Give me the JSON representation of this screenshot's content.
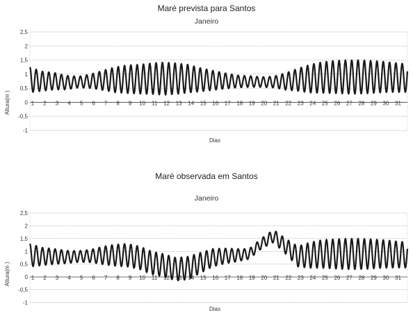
{
  "chart_data": [
    {
      "type": "line",
      "title": "Maré prevista para Santos",
      "subtitle": "Janeiro",
      "xlabel": "Dias",
      "ylabel": "Altura(m )",
      "ylim": [
        -1,
        2.5
      ],
      "yticks": [
        "2,5",
        "2",
        "1,5",
        "1",
        "0,5",
        "0",
        "-0,5",
        "-1"
      ],
      "ytick_values": [
        2.5,
        2,
        1.5,
        1,
        0.5,
        0,
        -0.5,
        -1
      ],
      "xticks": [
        "1",
        "2",
        "3",
        "4",
        "5",
        "6",
        "7",
        "8",
        "9",
        "10",
        "11",
        "12",
        "13",
        "14",
        "15",
        "16",
        "17",
        "18",
        "19",
        "20",
        "21",
        "22",
        "23",
        "24",
        "25",
        "26",
        "27",
        "28",
        "29",
        "30",
        "31"
      ],
      "xlim": [
        1,
        32
      ],
      "series": [
        {
          "mean": [
            0.8,
            0.75,
            0.75,
            0.7,
            0.72,
            0.75,
            0.78,
            0.8,
            0.82,
            0.82,
            0.84,
            0.84,
            0.84,
            0.84,
            0.8,
            0.78,
            0.76,
            0.74,
            0.74,
            0.72,
            0.72,
            0.74,
            0.8,
            0.84,
            0.88,
            0.9,
            0.9,
            0.9,
            0.9,
            0.9,
            0.88,
            0.86
          ],
          "amplitude": [
            0.45,
            0.35,
            0.3,
            0.25,
            0.2,
            0.25,
            0.35,
            0.45,
            0.5,
            0.52,
            0.55,
            0.58,
            0.55,
            0.5,
            0.42,
            0.35,
            0.28,
            0.22,
            0.2,
            0.18,
            0.2,
            0.3,
            0.4,
            0.5,
            0.55,
            0.58,
            0.6,
            0.6,
            0.58,
            0.55,
            0.52,
            0.5
          ],
          "cycles_per_day": 1.93
        }
      ]
    },
    {
      "type": "line",
      "title": "Maré observada em Santos",
      "subtitle": "Janeiro",
      "xlabel": "Dias",
      "ylabel": "Altura(m )",
      "ylim": [
        -1,
        2.5
      ],
      "yticks": [
        "2,5",
        "2",
        "1,5",
        "1",
        "0,5",
        "0",
        "-0,5",
        "-1"
      ],
      "ytick_values": [
        2.5,
        2,
        1.5,
        1,
        0.5,
        0,
        -0.5,
        -1
      ],
      "xticks": [
        "1",
        "2",
        "3",
        "4",
        "5",
        "6",
        "7",
        "8",
        "9",
        "10",
        "11",
        "12",
        "13",
        "14",
        "15",
        "16",
        "17",
        "18",
        "19",
        "20",
        "21",
        "22",
        "23",
        "24",
        "25",
        "26",
        "27",
        "28",
        "29",
        "30",
        "31"
      ],
      "xlim": [
        1,
        32
      ],
      "series": [
        {
          "mean": [
            0.85,
            0.8,
            0.8,
            0.78,
            0.8,
            0.82,
            0.84,
            0.85,
            0.85,
            0.75,
            0.55,
            0.45,
            0.3,
            0.35,
            0.55,
            0.75,
            0.82,
            0.85,
            0.9,
            1.3,
            1.6,
            1.2,
            0.8,
            0.85,
            0.9,
            0.9,
            0.9,
            0.9,
            0.9,
            0.9,
            0.88,
            0.86
          ],
          "amplitude": [
            0.45,
            0.35,
            0.3,
            0.25,
            0.22,
            0.25,
            0.35,
            0.42,
            0.45,
            0.45,
            0.45,
            0.45,
            0.45,
            0.45,
            0.4,
            0.35,
            0.3,
            0.25,
            0.2,
            0.2,
            0.25,
            0.3,
            0.4,
            0.5,
            0.55,
            0.58,
            0.6,
            0.6,
            0.58,
            0.55,
            0.52,
            0.5
          ],
          "cycles_per_day": 1.93
        }
      ]
    }
  ]
}
